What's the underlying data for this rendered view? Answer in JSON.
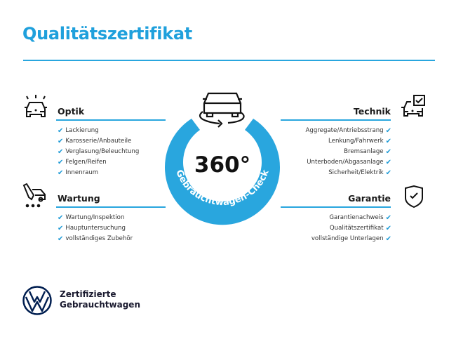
{
  "title": "Qualitätszertifikat",
  "colors": {
    "accent": "#29a6de",
    "logo": "#001e50"
  },
  "badge": {
    "value": "360°",
    "arc_text": "Gebrauchtwagen-Check",
    "icon": "car-rotate-icon"
  },
  "sections": {
    "optik": {
      "heading": "Optik",
      "icon": "car-lights-icon",
      "items": [
        "Lackierung",
        "Karosserie/Anbauteile",
        "Verglasung/Beleuchtung",
        "Felgen/Reifen",
        "Innenraum"
      ]
    },
    "wartung": {
      "heading": "Wartung",
      "icon": "service-tools-icon",
      "items": [
        "Wartung/Inspektion",
        "Hauptuntersuchung",
        "vollständiges Zubehör"
      ]
    },
    "technik": {
      "heading": "Technik",
      "icon": "car-checklist-icon",
      "items": [
        "Aggregate/Antriebsstrang",
        "Lenkung/Fahrwerk",
        "Bremsanlage",
        "Unterboden/Abgasanlage",
        "Sicherheit/Elektrik"
      ]
    },
    "garantie": {
      "heading": "Garantie",
      "icon": "shield-check-icon",
      "items": [
        "Garantienachweis",
        "Qualitätszertifikat",
        "vollständige Unterlagen"
      ]
    }
  },
  "check_mark": "✔",
  "footer": {
    "line1": "Zertifizierte",
    "line2": "Gebrauchtwagen",
    "logo": "vw-logo-icon"
  }
}
